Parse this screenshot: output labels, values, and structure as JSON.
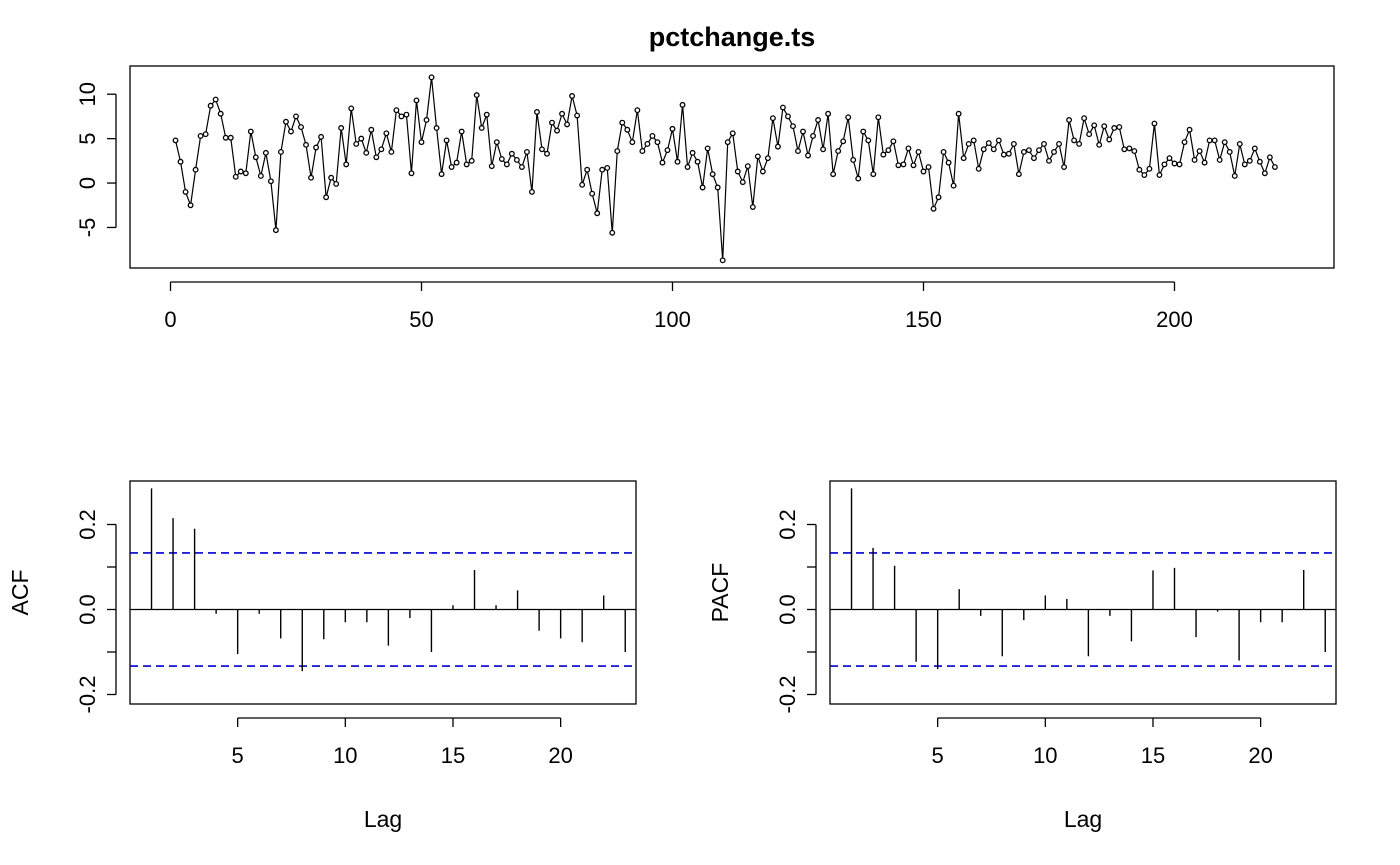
{
  "chart_data": [
    {
      "type": "line",
      "title": "pctchange.ts",
      "xlabel": "",
      "ylabel": "",
      "markers": true,
      "xlim": [
        0,
        225
      ],
      "ylim": [
        -9,
        12.5
      ],
      "x_ticks": [
        0,
        50,
        100,
        150,
        200
      ],
      "y_ticks": [
        -5,
        0,
        5,
        10
      ],
      "x_start": 1,
      "values": [
        4.8,
        2.4,
        -1,
        -2.5,
        1.5,
        5.3,
        5.5,
        8.7,
        9.4,
        7.8,
        5.1,
        5.1,
        0.7,
        1.3,
        1.1,
        5.8,
        2.9,
        0.8,
        3.4,
        0.2,
        -5.3,
        3.5,
        6.9,
        5.8,
        7.5,
        6.3,
        4.3,
        0.6,
        4,
        5.2,
        -1.6,
        0.6,
        -0.1,
        6.2,
        2.1,
        8.4,
        4.4,
        5,
        3.4,
        6,
        2.9,
        3.8,
        5.6,
        3.5,
        8.2,
        7.5,
        7.7,
        1.1,
        9.3,
        4.6,
        7.1,
        11.9,
        6.2,
        1,
        4.8,
        1.8,
        2.3,
        5.8,
        2.1,
        2.5,
        9.9,
        6.2,
        7.7,
        1.9,
        4.6,
        2.7,
        2.1,
        3.3,
        2.6,
        1.8,
        3.5,
        -1,
        8,
        3.8,
        3.3,
        6.8,
        5.9,
        7.8,
        6.6,
        9.8,
        7.6,
        -0.2,
        1.5,
        -1.2,
        -3.4,
        1.5,
        1.7,
        -5.6,
        3.6,
        6.8,
        6,
        4.6,
        8.2,
        3.6,
        4.4,
        5.3,
        4.6,
        2.3,
        3.7,
        6.1,
        2.4,
        8.8,
        1.8,
        3.4,
        2.4,
        -0.5,
        3.9,
        1,
        -0.5,
        -8.7,
        4.6,
        5.6,
        1.3,
        0.1,
        1.9,
        -2.7,
        3,
        1.3,
        2.8,
        7.3,
        4.1,
        8.5,
        7.5,
        6.4,
        3.6,
        5.8,
        3.1,
        5.3,
        7.1,
        3.8,
        7.8,
        1,
        3.6,
        4.7,
        7.4,
        2.6,
        0.5,
        5.8,
        4.8,
        1,
        7.4,
        3.2,
        3.7,
        4.7,
        2,
        2.1,
        3.9,
        2,
        3.5,
        1.3,
        1.8,
        -2.9,
        -1.6,
        3.5,
        2.3,
        -0.3,
        7.8,
        2.8,
        4.4,
        4.8,
        1.6,
        3.8,
        4.5,
        3.8,
        4.8,
        3.2,
        3.3,
        4.4,
        1,
        3.5,
        3.7,
        2.8,
        3.7,
        4.4,
        2.5,
        3.5,
        4.4,
        1.8,
        7.1,
        4.8,
        4.4,
        7.3,
        5.5,
        6.5,
        4.3,
        6.4,
        4.9,
        6.2,
        6.3,
        3.8,
        3.9,
        3.6,
        1.5,
        0.9,
        1.6,
        6.7,
        0.9,
        2.1,
        2.8,
        2.2,
        2.1,
        4.6,
        6,
        2.6,
        3.6,
        2.3,
        4.8,
        4.8,
        2.6,
        4.6,
        3.5,
        0.8,
        4.4,
        2.1,
        2.5,
        3.9,
        2.4,
        1.1,
        2.9,
        1.8
      ]
    },
    {
      "type": "bar",
      "subtype": "acf",
      "title": "",
      "xlabel": "Lag",
      "ylabel": "ACF",
      "xlim": [
        0,
        23.5
      ],
      "ylim": [
        -0.22,
        0.3
      ],
      "x_ticks": [
        5,
        10,
        15,
        20
      ],
      "y_ticks": [
        -0.2,
        0.0,
        0.2
      ],
      "y_tick_labels": [
        "-0.2",
        "0.0",
        "0.2"
      ],
      "confidence_bound": 0.133,
      "confidence_color": "#0000cd",
      "lags": [
        1,
        2,
        3,
        4,
        5,
        6,
        7,
        8,
        9,
        10,
        11,
        12,
        13,
        14,
        15,
        16,
        17,
        18,
        19,
        20,
        21,
        22,
        23
      ],
      "values": [
        0.285,
        0.215,
        0.19,
        -0.01,
        -0.105,
        -0.01,
        -0.068,
        -0.145,
        -0.07,
        -0.03,
        -0.03,
        -0.085,
        -0.02,
        -0.1,
        0.01,
        0.093,
        0.01,
        0.045,
        -0.05,
        -0.068,
        -0.077,
        0.033,
        -0.1
      ]
    },
    {
      "type": "bar",
      "subtype": "pacf",
      "title": "",
      "xlabel": "Lag",
      "ylabel": "PACF",
      "xlim": [
        0,
        23.5
      ],
      "ylim": [
        -0.22,
        0.3
      ],
      "x_ticks": [
        5,
        10,
        15,
        20
      ],
      "y_ticks": [
        -0.2,
        0.0,
        0.2
      ],
      "y_tick_labels": [
        "-0.2",
        "0.0",
        "0.2"
      ],
      "confidence_bound": 0.133,
      "confidence_color": "#0000cd",
      "lags": [
        1,
        2,
        3,
        4,
        5,
        6,
        7,
        8,
        9,
        10,
        11,
        12,
        13,
        14,
        15,
        16,
        17,
        18,
        19,
        20,
        21,
        22,
        23
      ],
      "values": [
        0.285,
        0.145,
        0.103,
        -0.123,
        -0.14,
        0.048,
        -0.015,
        -0.11,
        -0.025,
        0.033,
        0.025,
        -0.11,
        -0.015,
        -0.075,
        0.092,
        0.098,
        -0.065,
        -0.005,
        -0.12,
        -0.03,
        -0.03,
        0.093,
        -0.1
      ]
    }
  ]
}
